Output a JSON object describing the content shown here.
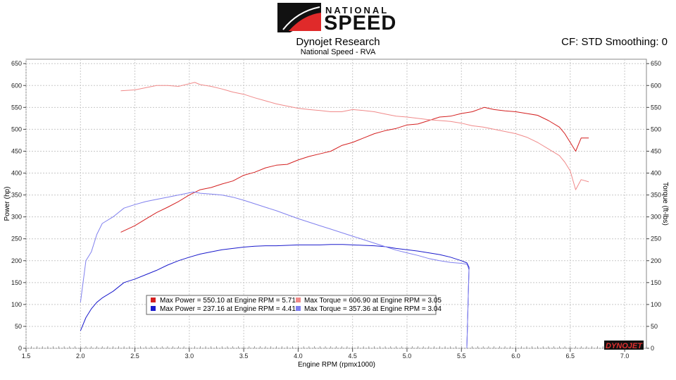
{
  "header": {
    "logo_word1": "NATIONAL",
    "logo_word2": "SPEED",
    "title": "Dynojet Research",
    "subtitle": "National Speed - RVA",
    "cf_text": "CF: STD Smoothing: 0",
    "brand_mark": "DYNOJET"
  },
  "colors": {
    "red_dark": "#d42020",
    "red_light": "#f08a8a",
    "blue_dark": "#1a1acc",
    "blue_light": "#8080ee",
    "grid": "#c8c8c8",
    "logo_red": "#e02a2a"
  },
  "chart_data": {
    "type": "line",
    "xlabel": "Engine RPM (rpmx1000)",
    "ylabel": "Power (hp)",
    "y2label": "Torque (ft-lbs)",
    "xlim": [
      1.5,
      7.2
    ],
    "ylim": [
      0,
      660
    ],
    "x_ticks": [
      "1.5",
      "2.0",
      "2.5",
      "3.0",
      "3.5",
      "4.0",
      "4.5",
      "5.0",
      "5.5",
      "6.0",
      "6.5",
      "7.0"
    ],
    "y_ticks": [
      "0",
      "50",
      "100",
      "150",
      "200",
      "250",
      "300",
      "350",
      "400",
      "450",
      "500",
      "550",
      "600",
      "650"
    ],
    "grid": true,
    "legend_position": "bottom-center",
    "series": [
      {
        "name": "Max Power = 550.10 at Engine RPM = 5.71",
        "kind": "power",
        "color": "#d42020",
        "x": [
          2.37,
          2.5,
          2.6,
          2.7,
          2.8,
          2.9,
          3.0,
          3.1,
          3.2,
          3.3,
          3.4,
          3.5,
          3.6,
          3.7,
          3.8,
          3.9,
          4.0,
          4.1,
          4.2,
          4.3,
          4.4,
          4.5,
          4.6,
          4.7,
          4.8,
          4.9,
          5.0,
          5.1,
          5.2,
          5.3,
          5.4,
          5.5,
          5.6,
          5.71,
          5.8,
          5.9,
          6.0,
          6.1,
          6.2,
          6.3,
          6.4,
          6.45,
          6.5,
          6.55,
          6.6,
          6.67
        ],
        "y": [
          265,
          280,
          295,
          310,
          322,
          335,
          350,
          362,
          367,
          375,
          382,
          395,
          402,
          412,
          418,
          420,
          430,
          438,
          444,
          450,
          463,
          470,
          480,
          490,
          497,
          502,
          510,
          512,
          520,
          528,
          530,
          536,
          540,
          550,
          545,
          542,
          540,
          536,
          532,
          520,
          505,
          490,
          470,
          450,
          480,
          480
        ]
      },
      {
        "name": "Max Power = 237.16 at Engine RPM = 4.41",
        "kind": "power",
        "color": "#1a1acc",
        "x": [
          2.0,
          2.05,
          2.1,
          2.15,
          2.2,
          2.3,
          2.4,
          2.5,
          2.6,
          2.7,
          2.8,
          2.9,
          3.0,
          3.1,
          3.2,
          3.3,
          3.4,
          3.5,
          3.6,
          3.7,
          3.8,
          3.9,
          4.0,
          4.1,
          4.2,
          4.3,
          4.41,
          4.5,
          4.6,
          4.7,
          4.8,
          4.9,
          5.0,
          5.1,
          5.2,
          5.3,
          5.4,
          5.5,
          5.55,
          5.57
        ],
        "y": [
          40,
          70,
          90,
          105,
          115,
          130,
          150,
          158,
          168,
          178,
          190,
          200,
          208,
          215,
          220,
          225,
          228,
          231,
          233,
          234,
          234,
          235,
          236,
          236,
          236,
          237,
          237,
          236,
          235,
          234,
          232,
          228,
          225,
          222,
          218,
          214,
          208,
          200,
          195,
          185
        ]
      },
      {
        "name": "Max Torque = 606.90 at Engine RPM = 3.05",
        "kind": "torque",
        "color": "#f08a8a",
        "x": [
          2.37,
          2.5,
          2.6,
          2.7,
          2.8,
          2.9,
          3.05,
          3.1,
          3.2,
          3.3,
          3.4,
          3.5,
          3.6,
          3.7,
          3.8,
          3.9,
          4.0,
          4.1,
          4.2,
          4.3,
          4.4,
          4.5,
          4.6,
          4.7,
          4.8,
          4.9,
          5.0,
          5.1,
          5.2,
          5.3,
          5.4,
          5.5,
          5.6,
          5.7,
          5.8,
          5.9,
          6.0,
          6.1,
          6.2,
          6.3,
          6.4,
          6.45,
          6.5,
          6.55,
          6.6,
          6.67
        ],
        "y": [
          588,
          590,
          595,
          600,
          600,
          598,
          607,
          602,
          598,
          592,
          585,
          580,
          572,
          565,
          558,
          553,
          548,
          545,
          543,
          540,
          540,
          545,
          543,
          540,
          535,
          530,
          528,
          525,
          522,
          520,
          518,
          514,
          508,
          505,
          500,
          495,
          490,
          482,
          470,
          455,
          440,
          425,
          405,
          362,
          385,
          380
        ]
      },
      {
        "name": "Max Torque = 357.36 at Engine RPM = 3.04",
        "kind": "torque",
        "color": "#8080ee",
        "x": [
          2.0,
          2.05,
          2.1,
          2.15,
          2.2,
          2.3,
          2.4,
          2.5,
          2.6,
          2.7,
          2.8,
          2.9,
          3.04,
          3.1,
          3.2,
          3.3,
          3.4,
          3.5,
          3.6,
          3.7,
          3.8,
          3.9,
          4.0,
          4.1,
          4.2,
          4.3,
          4.4,
          4.5,
          4.6,
          4.7,
          4.8,
          4.9,
          5.0,
          5.1,
          5.2,
          5.3,
          5.4,
          5.5,
          5.55,
          5.57
        ],
        "y": [
          105,
          200,
          220,
          260,
          285,
          300,
          320,
          328,
          335,
          340,
          345,
          350,
          357,
          354,
          352,
          350,
          345,
          338,
          330,
          322,
          314,
          305,
          296,
          288,
          280,
          272,
          264,
          256,
          248,
          240,
          232,
          224,
          218,
          212,
          205,
          200,
          196,
          194,
          192,
          180
        ]
      }
    ]
  }
}
